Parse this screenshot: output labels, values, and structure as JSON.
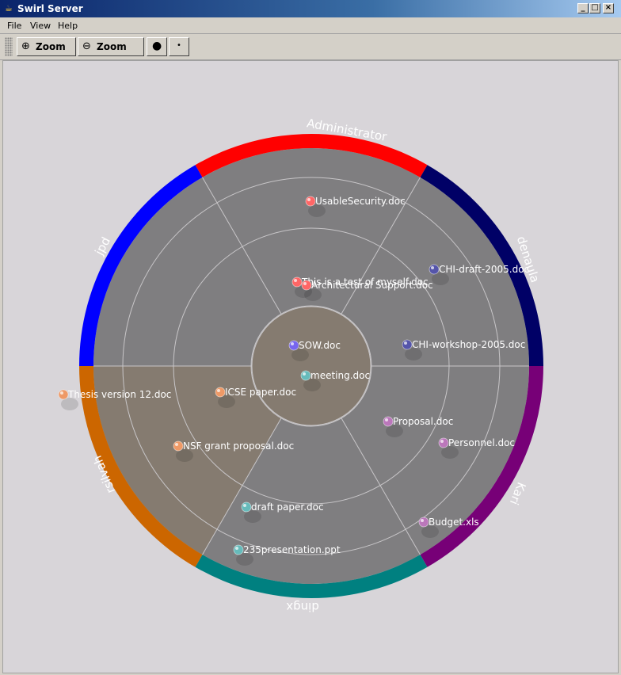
{
  "window": {
    "title": "Swirl Server"
  },
  "menu": [
    "File",
    "View",
    "Help"
  ],
  "toolbar": {
    "zoom_in": "Zoom In",
    "zoom_out": "Zoom Out",
    "add_node_icon": "add-node-icon",
    "remove_node_icon": "remove-node-icon"
  },
  "colors": {
    "Administrator": "#ff0000",
    "denaula": "#000066",
    "Kari": "#770077",
    "dingx": "#008080",
    "rsilvah": "#cc6600",
    "jpd": "#0000ff"
  },
  "users": [
    "Administrator",
    "denaula",
    "Kari",
    "dingx",
    "rsilvah",
    "jpd"
  ],
  "documents": [
    {
      "name": "UsableSecurity.doc",
      "owner": "Administrator"
    },
    {
      "name": "This is a test of myself.doc",
      "owner": "Administrator"
    },
    {
      "name": "Architectural Support.doc",
      "owner": "Administrator"
    },
    {
      "name": "CHI-draft-2005.doc",
      "owner": "denaula"
    },
    {
      "name": "CHI-workshop-2005.doc",
      "owner": "denaula"
    },
    {
      "name": "SOW.doc",
      "owner": "jpd"
    },
    {
      "name": "meeting.doc",
      "owner": "dingx"
    },
    {
      "name": "ICSE paper.doc",
      "owner": "rsilvah"
    },
    {
      "name": "Thesis version 12.doc",
      "owner": "rsilvah"
    },
    {
      "name": "NSF grant proposal.doc",
      "owner": "rsilvah"
    },
    {
      "name": "Proposal.doc",
      "owner": "Kari"
    },
    {
      "name": "Personnel.doc",
      "owner": "Kari"
    },
    {
      "name": "Budget.xls",
      "owner": "Kari"
    },
    {
      "name": "draft paper.doc",
      "owner": "dingx"
    },
    {
      "name": "235presentation.ppt",
      "owner": "dingx"
    }
  ]
}
